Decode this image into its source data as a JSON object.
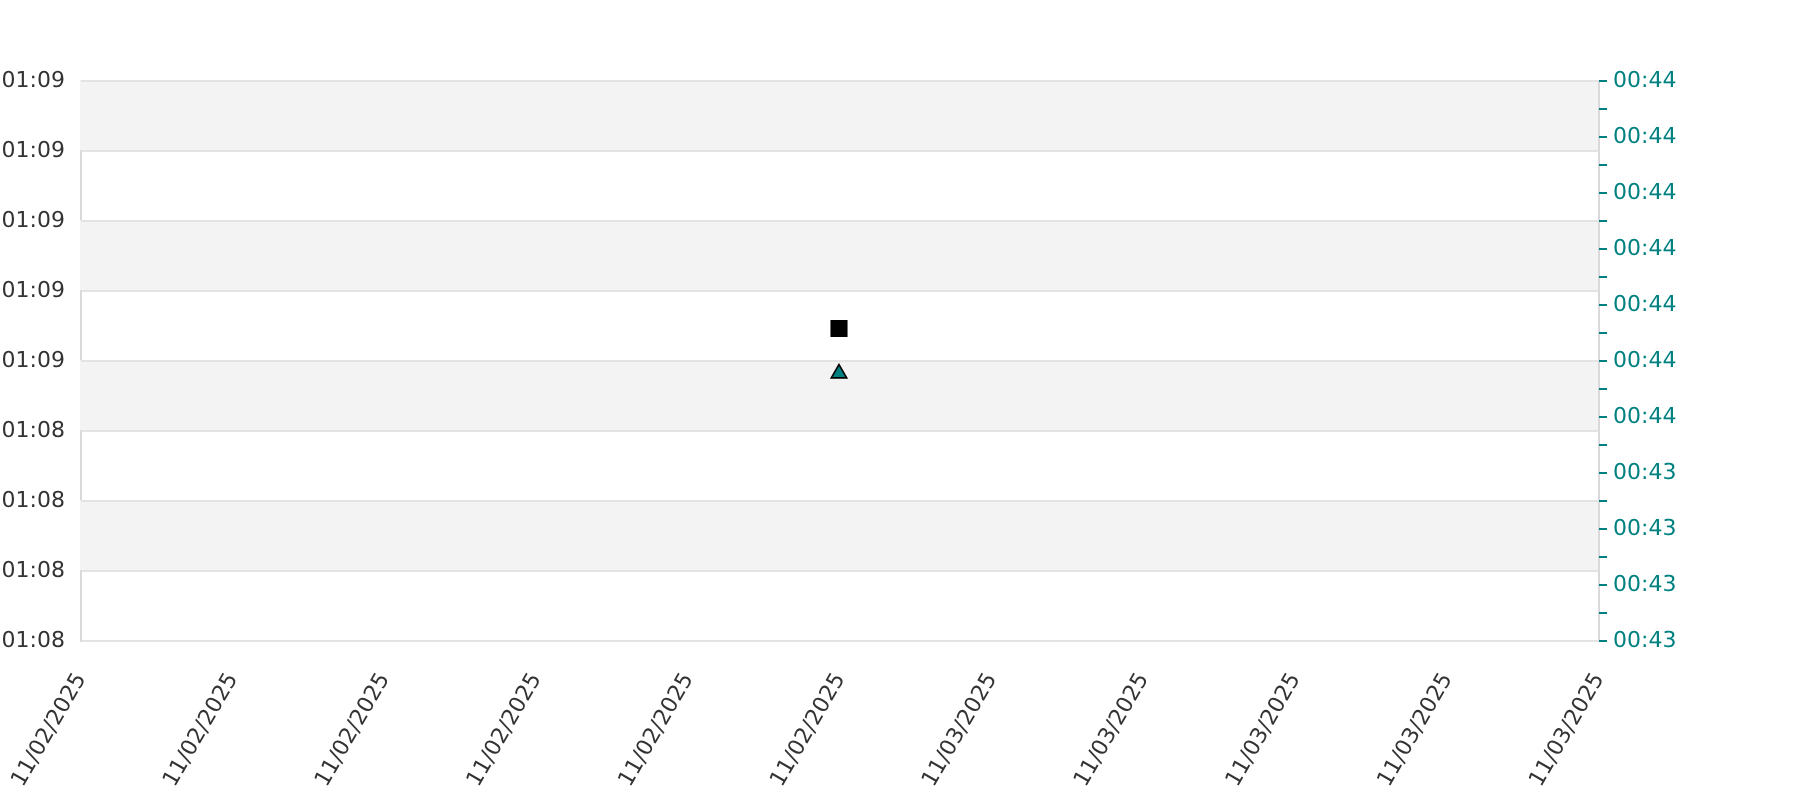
{
  "chart_data": {
    "type": "scatter",
    "x": [
      "2025-11-02T23:00"
    ],
    "series": [
      {
        "color": "#000000",
        "marker": "square",
        "values": [
          68.69
        ]
      },
      {
        "color": "#008080",
        "marker": "triangle",
        "axis": "y2",
        "values": [
          43.63
        ]
      }
    ],
    "xlim": [
      "2025-11-02T18:00",
      "2025-11-03T04:00"
    ],
    "xticks": [
      {
        "value": "2025-11-02T18:00",
        "label": "11/02/2025"
      },
      {
        "value": "2025-11-02T19:00",
        "label": "11/02/2025"
      },
      {
        "value": "2025-11-02T20:00",
        "label": "11/02/2025"
      },
      {
        "value": "2025-11-02T21:00",
        "label": "11/02/2025"
      },
      {
        "value": "2025-11-02T22:00",
        "label": "11/02/2025"
      },
      {
        "value": "2025-11-02T23:00",
        "label": "11/02/2025"
      },
      {
        "value": "2025-11-03T00:00",
        "label": "11/03/2025"
      },
      {
        "value": "2025-11-03T01:00",
        "label": "11/03/2025"
      },
      {
        "value": "2025-11-03T02:00",
        "label": "11/03/2025"
      },
      {
        "value": "2025-11-03T03:00",
        "label": "11/03/2025"
      },
      {
        "value": "2025-11-03T04:00",
        "label": "11/03/2025"
      }
    ],
    "ylim": [
      67.8,
      69.4
    ],
    "yticks": [
      {
        "value": 67.8,
        "label": "01:08"
      },
      {
        "value": 68.0,
        "label": "01:08"
      },
      {
        "value": 68.2,
        "label": "01:08"
      },
      {
        "value": 68.4,
        "label": "01:08"
      },
      {
        "value": 68.6,
        "label": "01:09"
      },
      {
        "value": 68.8,
        "label": "01:09"
      },
      {
        "value": 69.0,
        "label": "01:09"
      },
      {
        "value": 69.2,
        "label": "01:09"
      },
      {
        "value": 69.4,
        "label": "01:09"
      }
    ],
    "y2lim": [
      43.15,
      44.15
    ],
    "y2ticks": [
      {
        "value": 43.15,
        "label": "00:43"
      },
      {
        "value": 43.2,
        "label": null
      },
      {
        "value": 43.25,
        "label": "00:43"
      },
      {
        "value": 43.3,
        "label": null
      },
      {
        "value": 43.35,
        "label": "00:43"
      },
      {
        "value": 43.4,
        "label": null
      },
      {
        "value": 43.45,
        "label": "00:43"
      },
      {
        "value": 43.5,
        "label": null
      },
      {
        "value": 43.55,
        "label": "00:44"
      },
      {
        "value": 43.6,
        "label": null
      },
      {
        "value": 43.65,
        "label": "00:44"
      },
      {
        "value": 43.7,
        "label": null
      },
      {
        "value": 43.75,
        "label": "00:44"
      },
      {
        "value": 43.8,
        "label": null
      },
      {
        "value": 43.85,
        "label": "00:44"
      },
      {
        "value": 43.9,
        "label": null
      },
      {
        "value": 43.95,
        "label": "00:44"
      },
      {
        "value": 44.0,
        "label": null
      },
      {
        "value": 44.05,
        "label": "00:44"
      },
      {
        "value": 44.1,
        "label": null
      },
      {
        "value": 44.15,
        "label": "00:44"
      }
    ],
    "grid": "y",
    "bands": [
      {
        "axis": "y",
        "from": 69.2,
        "to": 69.4,
        "color": "#f3f3f3"
      },
      {
        "axis": "y",
        "from": 68.8,
        "to": 69.0,
        "color": "#f3f3f3"
      },
      {
        "axis": "y",
        "from": 68.4,
        "to": 68.6,
        "color": "#f3f3f3"
      },
      {
        "axis": "y",
        "from": 68.0,
        "to": 68.2,
        "color": "#f3f3f3"
      }
    ]
  }
}
